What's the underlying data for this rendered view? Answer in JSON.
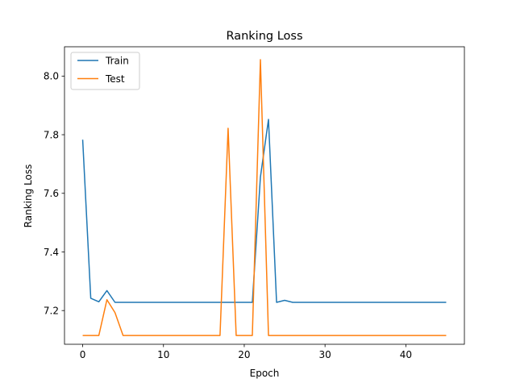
{
  "chart_data": {
    "type": "line",
    "title": "Ranking Loss",
    "xlabel": "Epoch",
    "ylabel": "Ranking Loss",
    "xlim": [
      -2.25,
      47.25
    ],
    "ylim": [
      7.085,
      8.1
    ],
    "xticks": [
      0,
      10,
      20,
      30,
      40
    ],
    "xtick_labels": [
      "0",
      "10",
      "20",
      "30",
      "40"
    ],
    "yticks": [
      7.2,
      7.4,
      7.6,
      7.8,
      8.0
    ],
    "ytick_labels": [
      "7.2",
      "7.4",
      "7.6",
      "7.8",
      "8.0"
    ],
    "grid": false,
    "legend_position": "upper left",
    "x": [
      0,
      1,
      2,
      3,
      4,
      5,
      6,
      7,
      8,
      9,
      10,
      11,
      12,
      13,
      14,
      15,
      16,
      17,
      18,
      19,
      20,
      21,
      22,
      23,
      24,
      25,
      26,
      27,
      28,
      29,
      30,
      31,
      32,
      33,
      34,
      35,
      36,
      37,
      38,
      39,
      40,
      41,
      42,
      43,
      44,
      45
    ],
    "series": [
      {
        "name": "Train",
        "color": "#1f77b4",
        "values": [
          7.783,
          7.242,
          7.23,
          7.268,
          7.228,
          7.228,
          7.228,
          7.228,
          7.228,
          7.228,
          7.228,
          7.228,
          7.228,
          7.228,
          7.228,
          7.228,
          7.228,
          7.228,
          7.228,
          7.228,
          7.228,
          7.228,
          7.655,
          7.852,
          7.228,
          7.235,
          7.228,
          7.228,
          7.228,
          7.228,
          7.228,
          7.228,
          7.228,
          7.228,
          7.228,
          7.228,
          7.228,
          7.228,
          7.228,
          7.228,
          7.228,
          7.228,
          7.228,
          7.228,
          7.228,
          7.228
        ]
      },
      {
        "name": "Test",
        "color": "#ff7f0e",
        "values": [
          7.115,
          7.115,
          7.115,
          7.237,
          7.193,
          7.115,
          7.115,
          7.115,
          7.115,
          7.115,
          7.115,
          7.115,
          7.115,
          7.115,
          7.115,
          7.115,
          7.115,
          7.115,
          7.822,
          7.115,
          7.115,
          7.115,
          8.056,
          7.115,
          7.115,
          7.115,
          7.115,
          7.115,
          7.115,
          7.115,
          7.115,
          7.115,
          7.115,
          7.115,
          7.115,
          7.115,
          7.115,
          7.115,
          7.115,
          7.115,
          7.115,
          7.115,
          7.115,
          7.115,
          7.115,
          7.115
        ]
      }
    ]
  }
}
